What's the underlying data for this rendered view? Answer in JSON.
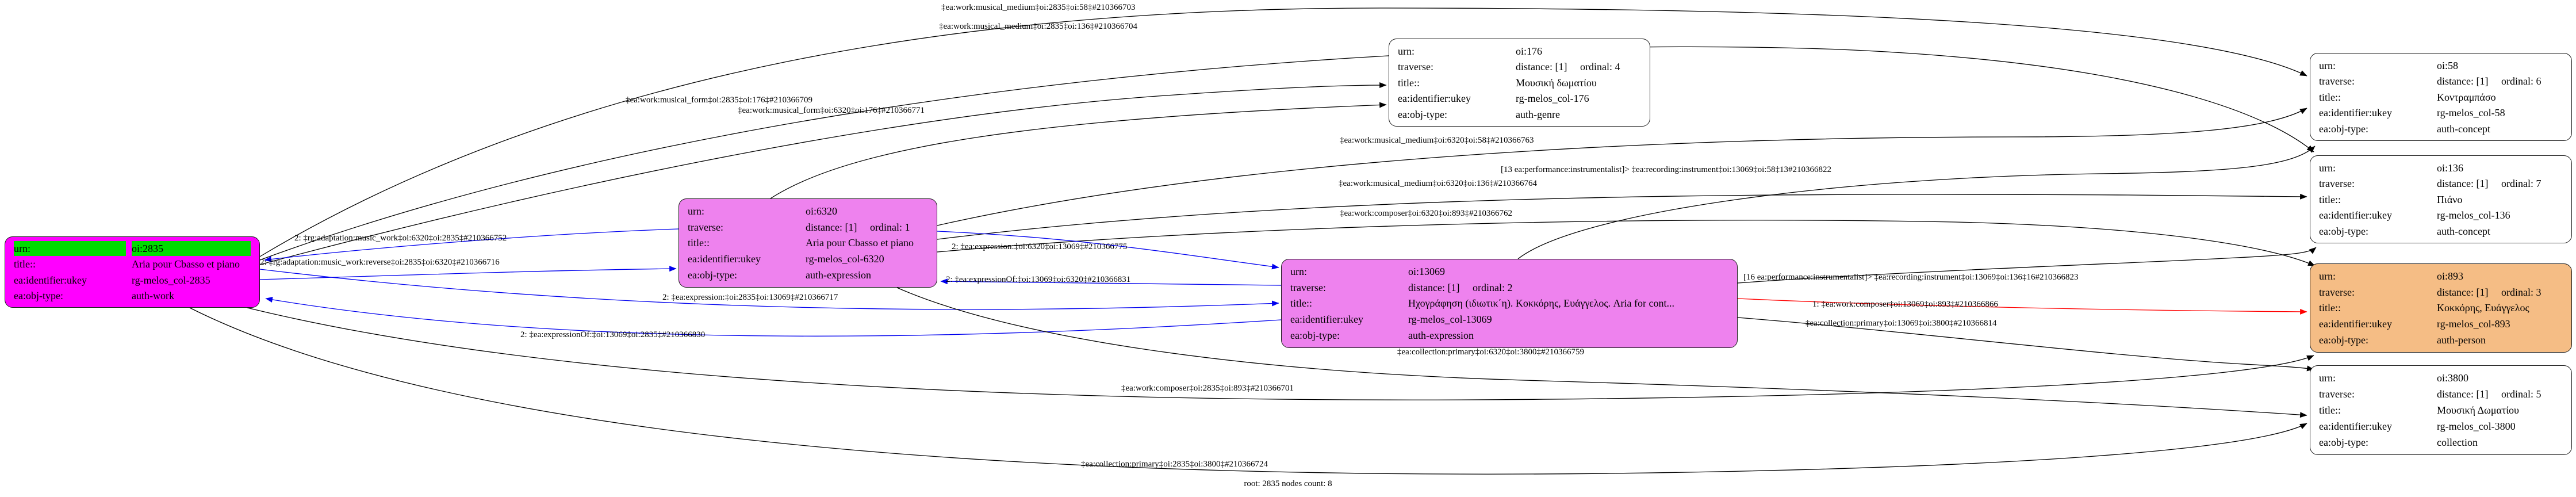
{
  "footer": "root: 2835 nodes count: 8",
  "palette": {
    "edge_black": "#000000",
    "edge_blue": "#0000ee",
    "edge_red": "#ff0000",
    "node_magenta": "#ff00ff",
    "node_violet": "#ee82ee",
    "node_sandybrown": "#f5bd85",
    "node_white": "#ffffff",
    "urn_highlight_green": "#00dd00"
  },
  "nodes": [
    {
      "name": "oi-2835",
      "fill": "#ff00ff",
      "fields": [
        {
          "key": "urn:",
          "value": "oi:2835",
          "highlight": true
        },
        {
          "key": "title::",
          "value": "Aria pour Cbasso et piano"
        },
        {
          "key": "ea:identifier:ukey",
          "value": "rg-melos_col-2835"
        },
        {
          "key": "ea:obj-type:",
          "value": "auth-work"
        }
      ]
    },
    {
      "name": "oi-6320",
      "fill": "#ee82ee",
      "fields": [
        {
          "key": "urn:",
          "value": "oi:6320"
        },
        {
          "key": "traverse:",
          "value": "distance: [1]     ordinal: 1"
        },
        {
          "key": "title::",
          "value": "Aria pour Cbasso et piano"
        },
        {
          "key": "ea:identifier:ukey",
          "value": "rg-melos_col-6320"
        },
        {
          "key": "ea:obj-type:",
          "value": "auth-expression"
        }
      ]
    },
    {
      "name": "oi-13069",
      "fill": "#ee82ee",
      "fields": [
        {
          "key": "urn:",
          "value": "oi:13069"
        },
        {
          "key": "traverse:",
          "value": "distance: [1]     ordinal: 2"
        },
        {
          "key": "title::",
          "value": "Ηχογράφηση (ιδιωτικ΄η). Κοκκόρης, Ευάγγελος. Aria for cont..."
        },
        {
          "key": "ea:identifier:ukey",
          "value": "rg-melos_col-13069"
        },
        {
          "key": "ea:obj-type:",
          "value": "auth-expression"
        }
      ]
    },
    {
      "name": "oi-176",
      "fill": "#ffffff",
      "fields": [
        {
          "key": "urn:",
          "value": "oi:176"
        },
        {
          "key": "traverse:",
          "value": "distance: [1]     ordinal: 4"
        },
        {
          "key": "title::",
          "value": "Μουσική δωματίου"
        },
        {
          "key": "ea:identifier:ukey",
          "value": "rg-melos_col-176"
        },
        {
          "key": "ea:obj-type:",
          "value": "auth-genre"
        }
      ]
    },
    {
      "name": "oi-58",
      "fill": "#ffffff",
      "fields": [
        {
          "key": "urn:",
          "value": "oi:58"
        },
        {
          "key": "traverse:",
          "value": "distance: [1]     ordinal: 6"
        },
        {
          "key": "title::",
          "value": "Κοντραμπάσο"
        },
        {
          "key": "ea:identifier:ukey",
          "value": "rg-melos_col-58"
        },
        {
          "key": "ea:obj-type:",
          "value": "auth-concept"
        }
      ]
    },
    {
      "name": "oi-136",
      "fill": "#ffffff",
      "fields": [
        {
          "key": "urn:",
          "value": "oi:136"
        },
        {
          "key": "traverse:",
          "value": "distance: [1]     ordinal: 7"
        },
        {
          "key": "title::",
          "value": "Πιάνο"
        },
        {
          "key": "ea:identifier:ukey",
          "value": "rg-melos_col-136"
        },
        {
          "key": "ea:obj-type:",
          "value": "auth-concept"
        }
      ]
    },
    {
      "name": "oi-893",
      "fill": "#f5bd85",
      "fields": [
        {
          "key": "urn:",
          "value": "oi:893"
        },
        {
          "key": "traverse:",
          "value": "distance: [1]     ordinal: 3"
        },
        {
          "key": "title::",
          "value": "Κοκκόρης, Ευάγγελος"
        },
        {
          "key": "ea:identifier:ukey",
          "value": "rg-melos_col-893"
        },
        {
          "key": "ea:obj-type:",
          "value": "auth-person"
        }
      ]
    },
    {
      "name": "oi-3800",
      "fill": "#ffffff",
      "fields": [
        {
          "key": "urn:",
          "value": "oi:3800"
        },
        {
          "key": "traverse:",
          "value": "distance: [1]     ordinal: 5"
        },
        {
          "key": "title::",
          "value": "Μουσική Δωματίου"
        },
        {
          "key": "ea:identifier:ukey",
          "value": "rg-melos_col-3800"
        },
        {
          "key": "ea:obj-type:",
          "value": "collection"
        }
      ]
    }
  ],
  "edges": [
    {
      "label": "‡ea:work:musical_medium‡oi:2835‡oi:58‡#210366703",
      "color": "black"
    },
    {
      "label": "‡ea:work:musical_medium‡oi:2835‡oi:136‡#210366704",
      "color": "black"
    },
    {
      "label": "‡ea:work:musical_form‡oi:2835‡oi:176‡#210366709",
      "color": "black"
    },
    {
      "label": "‡ea:work:musical_form‡oi:6320‡oi:176‡#210366771",
      "color": "black"
    },
    {
      "label": "‡ea:work:musical_medium‡oi:6320‡oi:58‡#210366763",
      "color": "black"
    },
    {
      "label": "[13 ea:performance:instrumentalist]> ‡ea:recording:instrument‡oi:13069‡oi:58‡13#210366822",
      "color": "black"
    },
    {
      "label": "‡ea:work:musical_medium‡oi:6320‡oi:136‡#210366764",
      "color": "black"
    },
    {
      "label": "‡ea:work:composer‡oi:6320‡oi:893‡#210366762",
      "color": "black"
    },
    {
      "label": "2: ‡rg:adaptation:music_work‡oi:6320‡oi:2835‡#210366752",
      "color": "blue"
    },
    {
      "label": "2: ‡rg:adaptation:music_work:reverse‡oi:2835‡oi:6320‡#210366716",
      "color": "blue"
    },
    {
      "label": "2: ‡ea:expression:‡oi:6320‡oi:13069‡#210366775",
      "color": "blue"
    },
    {
      "label": "2: ‡ea:expressionOf:‡oi:13069‡oi:6320‡#210366831",
      "color": "blue"
    },
    {
      "label": "2: ‡ea:expression:‡oi:2835‡oi:13069‡#210366717",
      "color": "blue"
    },
    {
      "label": "2: ‡ea:expressionOf:‡oi:13069‡oi:2835‡#210366830",
      "color": "blue"
    },
    {
      "label": "[16 ea:performance:instrumentalist]> ‡ea:recording:instrument‡oi:13069‡oi:136‡16#210366823",
      "color": "black"
    },
    {
      "label": "1: ‡ea:work:composer‡oi:13069‡oi:893‡#210366866",
      "color": "red"
    },
    {
      "label": "‡ea:collection:primary‡oi:13069‡oi:3800‡#210366814",
      "color": "black"
    },
    {
      "label": "‡ea:collection:primary‡oi:6320‡oi:3800‡#210366759",
      "color": "black"
    },
    {
      "label": "‡ea:work:composer‡oi:2835‡oi:893‡#210366701",
      "color": "black"
    },
    {
      "label": "‡ea:collection:primary‡oi:2835‡oi:3800‡#210366724",
      "color": "black"
    }
  ]
}
